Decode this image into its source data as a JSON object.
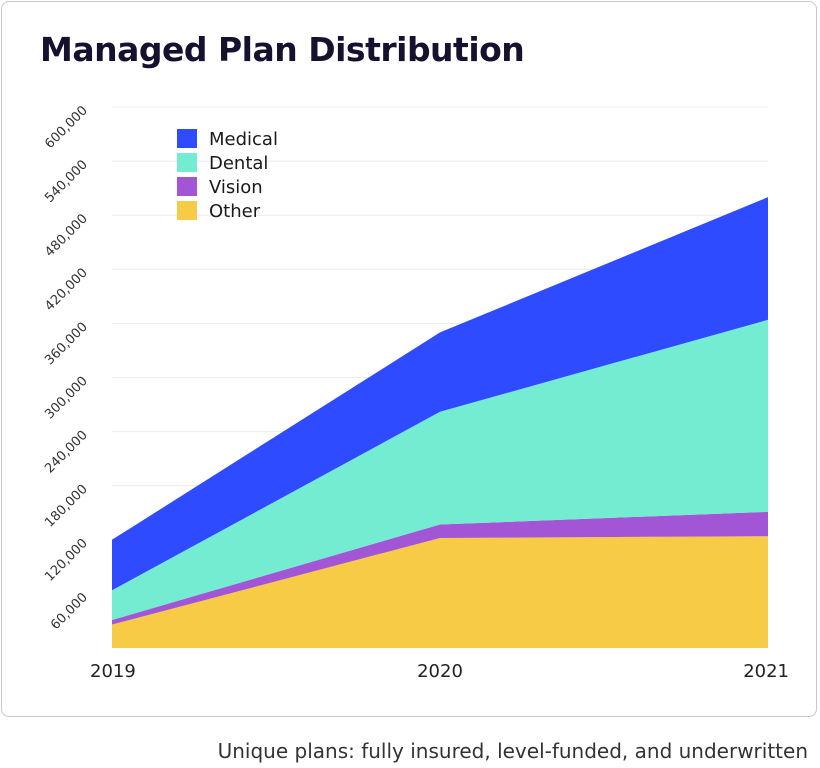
{
  "chart_data": {
    "type": "area",
    "stacked": true,
    "title": "Managed Plan Distribution",
    "caption": "Unique plans: fully insured, level-funded, and underwritten",
    "x": [
      "2019",
      "2020",
      "2021"
    ],
    "ylim": [
      0,
      600000
    ],
    "yticks": [
      60000,
      120000,
      180000,
      240000,
      300000,
      360000,
      420000,
      480000,
      540000,
      600000
    ],
    "ytick_labels": [
      "60,000",
      "120,000",
      "180,000",
      "240,000",
      "300,000",
      "360,000",
      "420,000",
      "480,000",
      "540,000",
      "600,000"
    ],
    "grid": true,
    "legend_position": "top-left",
    "series": [
      {
        "name": "Other",
        "color": "#f7cb46",
        "values": [
          26000,
          122000,
          124000
        ]
      },
      {
        "name": "Vision",
        "color": "#a256d6",
        "values": [
          5000,
          15000,
          27000
        ]
      },
      {
        "name": "Dental",
        "color": "#73ecd2",
        "values": [
          33000,
          125000,
          213000
        ]
      },
      {
        "name": "Medical",
        "color": "#2f4bff",
        "values": [
          56000,
          88000,
          136000
        ]
      }
    ],
    "legend_order": [
      "Medical",
      "Dental",
      "Vision",
      "Other"
    ]
  }
}
